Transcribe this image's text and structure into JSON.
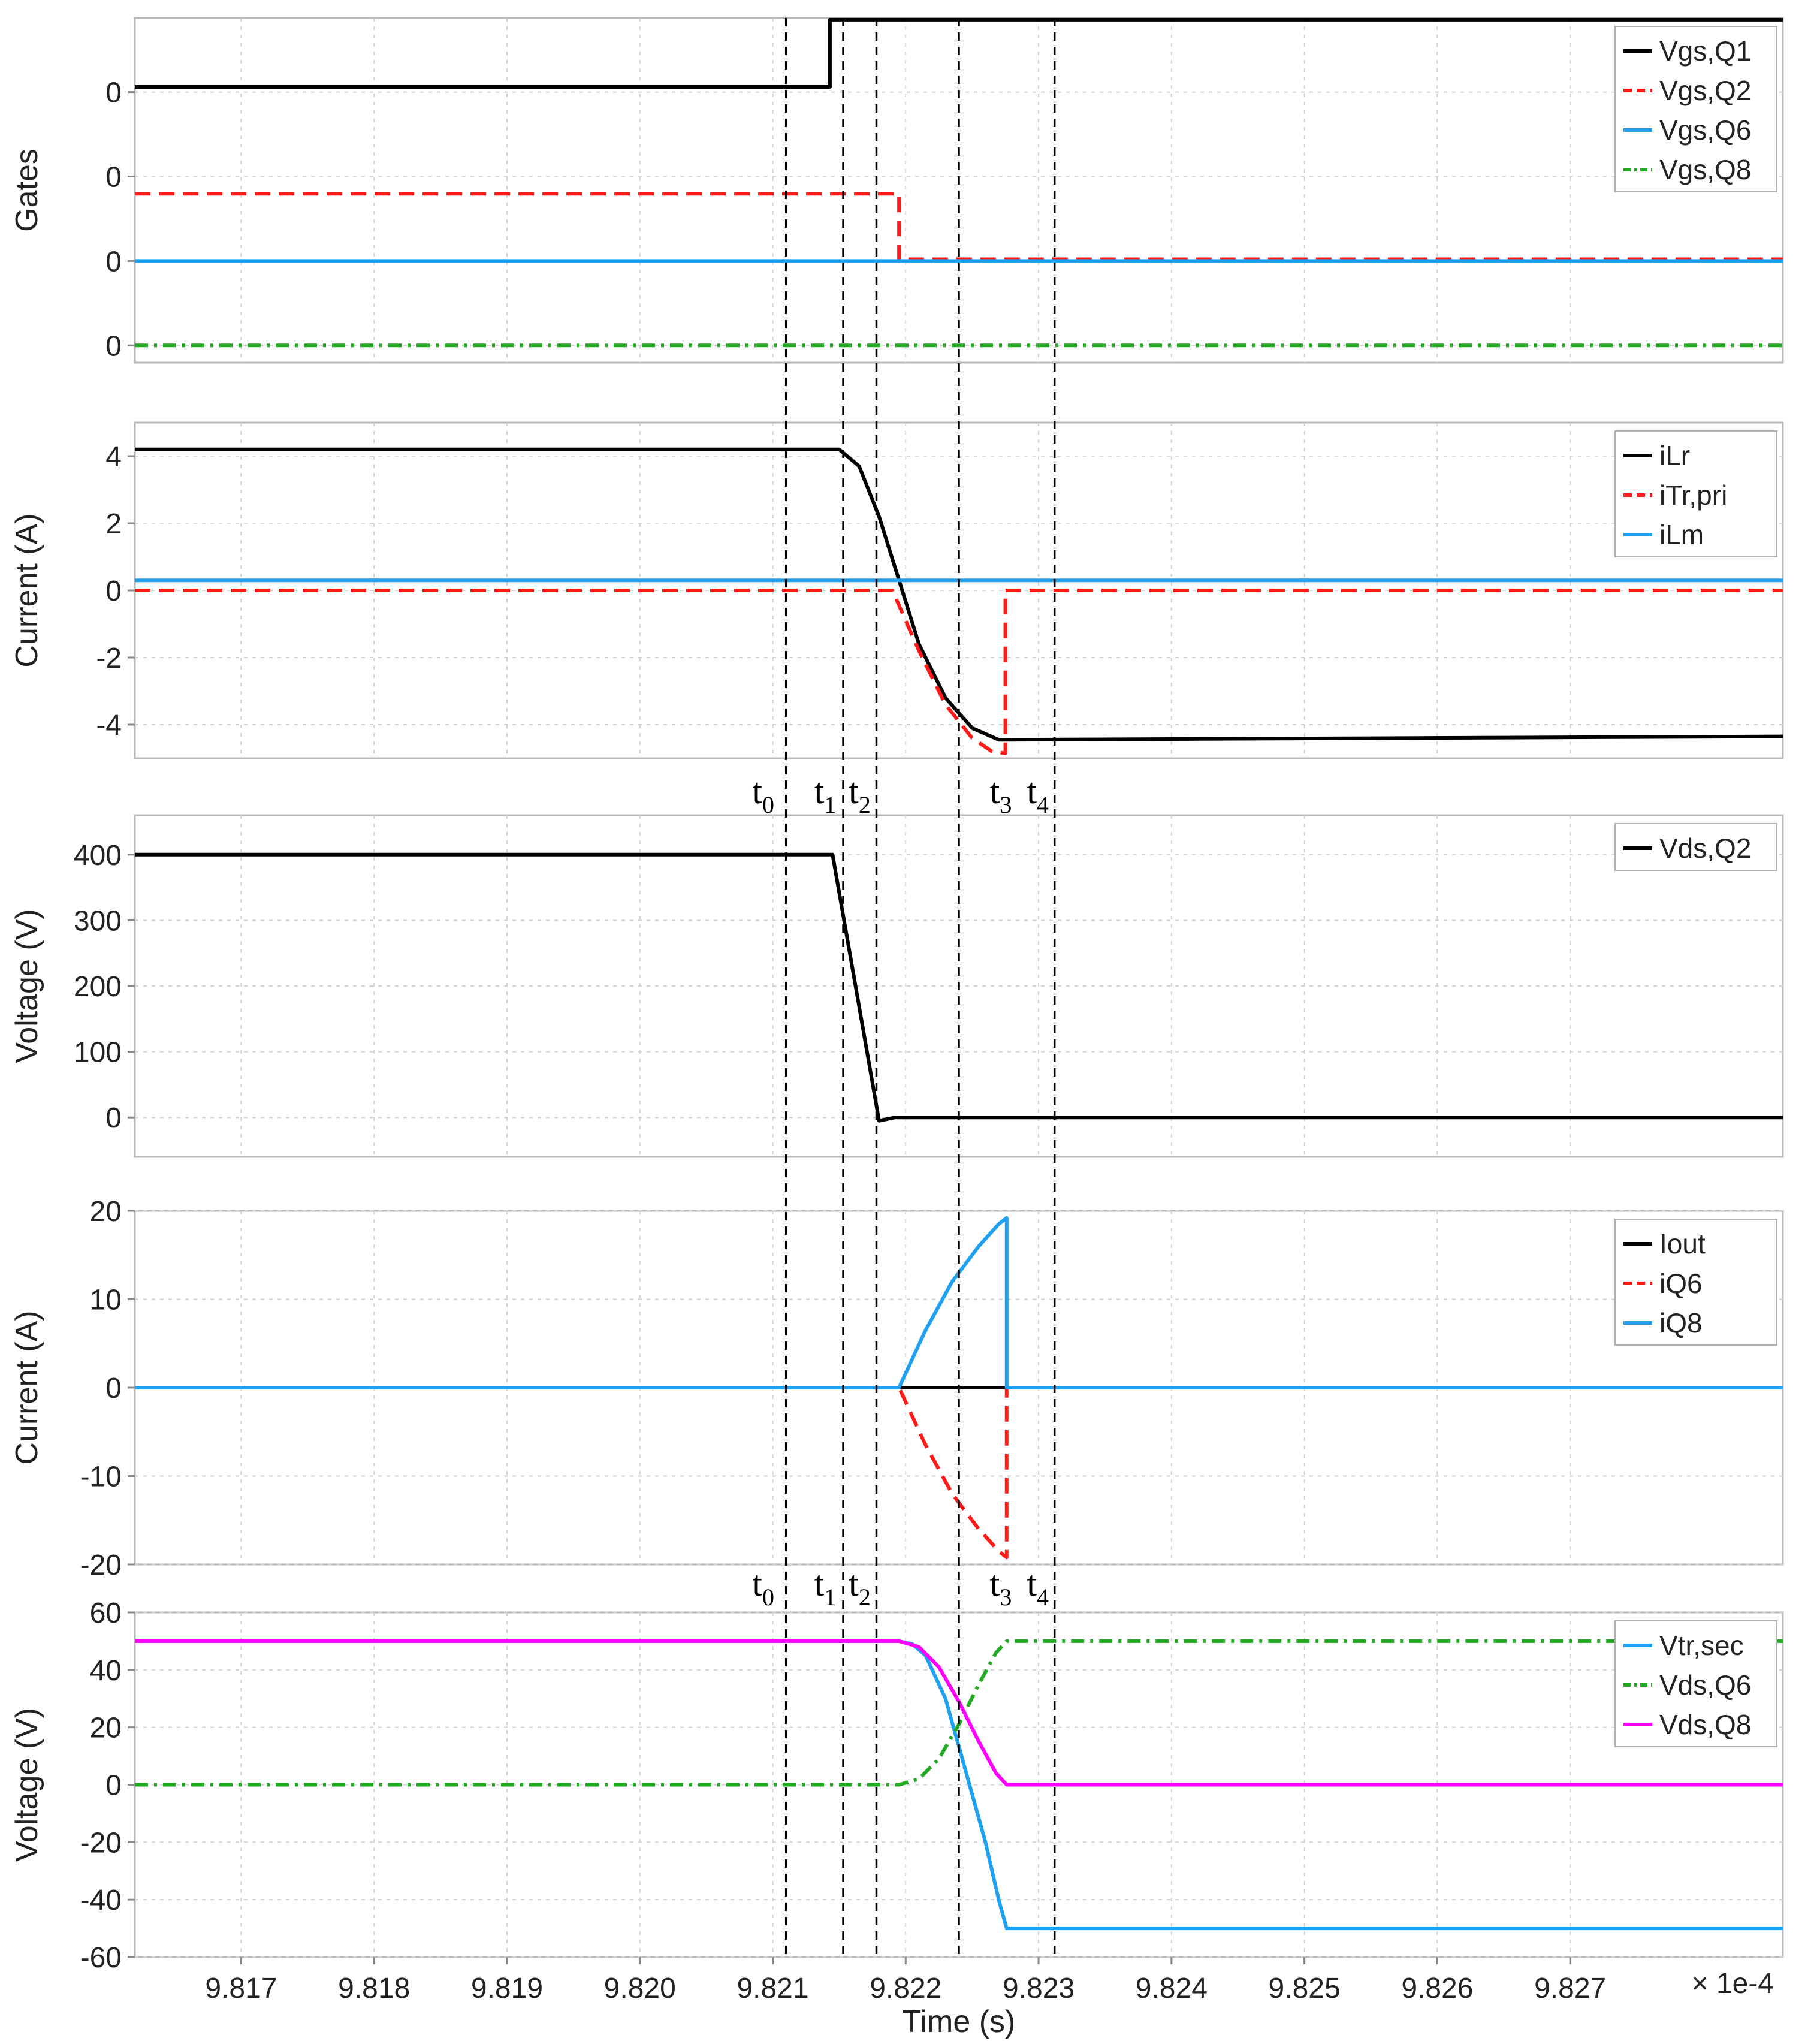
{
  "chart_data": {
    "type": "line",
    "xlabel": "Time (s)",
    "x_multiplier_label": "× 1e-4",
    "xlim": [
      9.8162,
      9.8286
    ],
    "xticks": [
      "9.817",
      "9.818",
      "9.819",
      "9.820",
      "9.821",
      "9.822",
      "9.823",
      "9.824",
      "9.825",
      "9.826",
      "9.827"
    ],
    "colors": {
      "black": "#000000",
      "red": "#ff1a1a",
      "blue": "#1fa0f0",
      "green": "#22aa22",
      "magenta": "#ff00ff"
    },
    "time_markers": [
      {
        "name": "t0",
        "base": "t",
        "sub": "0",
        "x": 9.8211
      },
      {
        "name": "t1",
        "base": "t",
        "sub": "1",
        "x": 9.82153
      },
      {
        "name": "t2",
        "base": "t",
        "sub": "2",
        "x": 9.82178
      },
      {
        "name": "t3",
        "base": "t",
        "sub": "3",
        "x": 9.8224
      },
      {
        "name": "t4",
        "base": "t",
        "sub": "4",
        "x": 9.82312
      }
    ],
    "panels": [
      {
        "id": "gates",
        "ylabel": "Gates",
        "ylim": [
          0,
          1
        ],
        "ytick_values": [
          0.215,
          0.46,
          0.705,
          0.95
        ],
        "yticks": [
          "0",
          "0",
          "0",
          "0"
        ],
        "series": [
          {
            "name": "Vgs,Q1",
            "color": "#000000",
            "dash": "solid",
            "x": [
              9.8162,
              9.82143,
              9.82143,
              9.8286
            ],
            "values": [
              0.2,
              0.2,
              0.005,
              0.005
            ]
          },
          {
            "name": "Vgs,Q2",
            "color": "#ff1a1a",
            "dash": "dash",
            "x": [
              9.8162,
              9.82195,
              9.82195,
              9.8286
            ],
            "values": [
              0.51,
              0.51,
              0.7,
              0.7
            ]
          },
          {
            "name": "Vgs,Q6",
            "color": "#1fa0f0",
            "dash": "solid",
            "x": [
              9.8162,
              9.8286
            ],
            "values": [
              0.705,
              0.705
            ]
          },
          {
            "name": "Vgs,Q8",
            "color": "#22aa22",
            "dash": "dashdot",
            "x": [
              9.8162,
              9.8286
            ],
            "values": [
              0.95,
              0.95
            ]
          }
        ],
        "legend": [
          "Vgs,Q1",
          "Vgs,Q2",
          "Vgs,Q6",
          "Vgs,Q8"
        ],
        "invert": true
      },
      {
        "id": "primary-current",
        "ylabel": "Current (A)",
        "ylim": [
          -5,
          5
        ],
        "yticks": [
          "4",
          "2",
          "0",
          "-2",
          "-4"
        ],
        "ytick_values": [
          4,
          2,
          0,
          -2,
          -4
        ],
        "series": [
          {
            "name": "iLr",
            "color": "#000000",
            "dash": "solid",
            "x": [
              9.8162,
              9.8215,
              9.82165,
              9.8218,
              9.82195,
              9.8221,
              9.8223,
              9.8225,
              9.8227,
              9.82275,
              9.8286
            ],
            "values": [
              4.2,
              4.2,
              3.7,
              2.2,
              0.3,
              -1.6,
              -3.2,
              -4.1,
              -4.45,
              -4.45,
              -4.35
            ]
          },
          {
            "name": "iTr,pri",
            "color": "#ff1a1a",
            "dash": "dash",
            "x": [
              9.8162,
              9.8219,
              9.8221,
              9.8223,
              9.8225,
              9.82265,
              9.82275,
              9.82275,
              9.8286
            ],
            "values": [
              0,
              0,
              -1.8,
              -3.4,
              -4.4,
              -4.8,
              -4.85,
              0,
              0
            ]
          },
          {
            "name": "iLm",
            "color": "#1fa0f0",
            "dash": "solid",
            "x": [
              9.8162,
              9.8286
            ],
            "values": [
              0.3,
              0.3
            ]
          }
        ],
        "legend": [
          "iLr",
          "iTr,pri",
          "iLm"
        ]
      },
      {
        "id": "primary-voltage",
        "ylabel": "Voltage (V)",
        "ylim": [
          -60,
          460
        ],
        "yticks": [
          "400",
          "300",
          "200",
          "100",
          "0"
        ],
        "ytick_values": [
          400,
          300,
          200,
          100,
          0
        ],
        "series": [
          {
            "name": "Vds,Q2",
            "color": "#000000",
            "dash": "solid",
            "x": [
              9.8162,
              9.82145,
              9.8218,
              9.82192,
              9.8286
            ],
            "values": [
              400,
              400,
              -5,
              0,
              0
            ]
          }
        ],
        "legend": [
          "Vds,Q2"
        ]
      },
      {
        "id": "secondary-current",
        "ylabel": "Current (A)",
        "ylim": [
          -20,
          20
        ],
        "yticks": [
          "20",
          "10",
          "0",
          "-10",
          "-20"
        ],
        "ytick_values": [
          20,
          10,
          0,
          -10,
          -20
        ],
        "series": [
          {
            "name": "Iout",
            "color": "#000000",
            "dash": "solid",
            "x": [
              9.82195,
              9.82276
            ],
            "values": [
              0,
              0
            ]
          },
          {
            "name": "iQ6",
            "color": "#ff1a1a",
            "dash": "dash",
            "x": [
              9.8162,
              9.82195,
              9.82215,
              9.82235,
              9.82255,
              9.8227,
              9.82276,
              9.82276,
              9.8286
            ],
            "values": [
              0,
              0,
              -6.5,
              -12,
              -16,
              -18.5,
              -19.2,
              0,
              0
            ]
          },
          {
            "name": "iQ8",
            "color": "#1fa0f0",
            "dash": "solid",
            "x": [
              9.8162,
              9.82195,
              9.82215,
              9.82235,
              9.82255,
              9.8227,
              9.82276,
              9.82276,
              9.8286
            ],
            "values": [
              0,
              0,
              6.5,
              12,
              16,
              18.5,
              19.2,
              0,
              0
            ]
          }
        ],
        "legend": [
          "Iout",
          "iQ6",
          "iQ8"
        ]
      },
      {
        "id": "secondary-voltage",
        "ylabel": "Voltage (V)",
        "ylim": [
          -60,
          60
        ],
        "yticks": [
          "60",
          "40",
          "20",
          "0",
          "-20",
          "-40",
          "-60"
        ],
        "ytick_values": [
          60,
          40,
          20,
          0,
          -20,
          -40,
          -60
        ],
        "series": [
          {
            "name": "Vtr,sec",
            "color": "#1fa0f0",
            "dash": "solid",
            "x": [
              9.8162,
              9.82195,
              9.82205,
              9.82215,
              9.8223,
              9.82245,
              9.8226,
              9.8227,
              9.82276,
              9.8286
            ],
            "values": [
              50,
              50,
              49,
              45,
              30,
              5,
              -20,
              -40,
              -50,
              -50
            ]
          },
          {
            "name": "Vds,Q6",
            "color": "#22aa22",
            "dash": "dashdot",
            "x": [
              9.8162,
              9.82195,
              9.8221,
              9.82225,
              9.8224,
              9.82255,
              9.82268,
              9.82276,
              9.8286
            ],
            "values": [
              0,
              0,
              2,
              9,
              21,
              35,
              46,
              50,
              50
            ]
          },
          {
            "name": "Vds,Q8",
            "color": "#ff00ff",
            "dash": "solid",
            "x": [
              9.8162,
              9.82195,
              9.8221,
              9.82225,
              9.8224,
              9.82255,
              9.82268,
              9.82276,
              9.8286
            ],
            "values": [
              50,
              50,
              48,
              41,
              29,
              15,
              4,
              0,
              0
            ]
          }
        ],
        "legend": [
          "Vtr,sec",
          "Vds,Q6",
          "Vds,Q8"
        ]
      }
    ]
  }
}
